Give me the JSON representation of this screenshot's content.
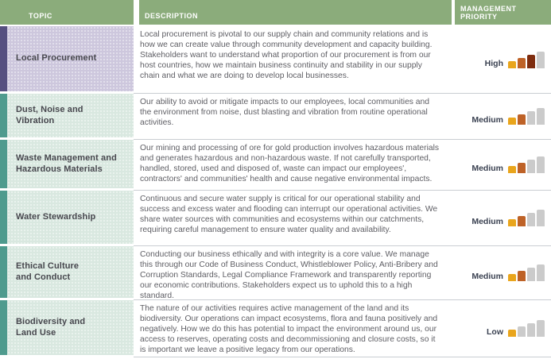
{
  "table": {
    "headers": {
      "topic": "TOPIC",
      "description": "DESCRIPTION",
      "priority": "MANAGEMENT PRIORITY"
    },
    "rows": [
      {
        "topic": "Local Procurement",
        "description": "Local procurement is pivotal to our supply chain and community relations and is how we can create value through community development and capacity building. Stakeholders want to understand what proportion of our procurement is from our host countries, how we maintain business continuity and stability in our supply chain and what we are doing to develop local businesses.",
        "priority": "High",
        "priority_level": 3,
        "theme": "purple"
      },
      {
        "topic": "Dust, Noise and\nVibration",
        "description": "Our ability to avoid or mitigate impacts to our employees, local communities and the environment from noise, dust blasting and vibration from routine operational activities.",
        "priority": "Medium",
        "priority_level": 2,
        "theme": "teal"
      },
      {
        "topic": "Waste Management and\nHazardous Materials",
        "description": "Our mining and processing of ore for gold production involves hazardous materials and generates hazardous and non-hazardous waste. If not carefully transported, handled, stored, used and disposed of, waste can impact our employees', contractors' and communities' health and cause negative environmental impacts.",
        "priority": "Medium",
        "priority_level": 2,
        "theme": "teal"
      },
      {
        "topic": "Water Stewardship",
        "description": "Continuous and secure water supply is critical for our operational stability and success and excess water and flooding can interrupt our operational activities. We share water sources with communities and ecosystems within our catchments, requiring careful management to ensure water quality and availability.",
        "priority": "Medium",
        "priority_level": 2,
        "theme": "teal"
      },
      {
        "topic": "Ethical Culture\nand Conduct",
        "description": "Conducting our business ethically and with integrity is a core value. We manage this through our Code of Business Conduct, Whistleblower Policy, Anti-Bribery and Corruption Standards, Legal Compliance Framework and transparently reporting our economic contributions. Stakeholders expect us to uphold this to a high standard.",
        "priority": "Medium",
        "priority_level": 2,
        "theme": "teal"
      },
      {
        "topic": "Biodiversity and\nLand Use",
        "description": "The nature of our activities requires active management of the land and its biodiversity. Our operations can impact ecosystems, flora and fauna positively and negatively. How we do this has potential to impact the environment around us, our access to reserves, operating costs and decommissioning and closure costs, so it is important we leave a positive legacy from our operations.",
        "priority": "Low",
        "priority_level": 1,
        "theme": "teal"
      }
    ],
    "priority_scale": {
      "max_bars": 4,
      "levels": {
        "High": 3,
        "Medium": 2,
        "Low": 1
      }
    },
    "colors": {
      "header_bg": "#8BAC7B",
      "header_text": "#FFFFFF",
      "themes": {
        "purple": {
          "accent": "#565080",
          "bg": "#CDC7DD"
        },
        "teal": {
          "accent": "#4F9B8E",
          "bg": "#D9E8E0"
        },
        "orange": {
          "accent": "#B2602B",
          "bg": "#F0D4BD"
        }
      },
      "bar_active": [
        "#E9A51C",
        "#BE6227",
        "#7E2C0E"
      ],
      "bar_inactive": "#CBCBCB",
      "separator": "#C9CDD2"
    }
  }
}
